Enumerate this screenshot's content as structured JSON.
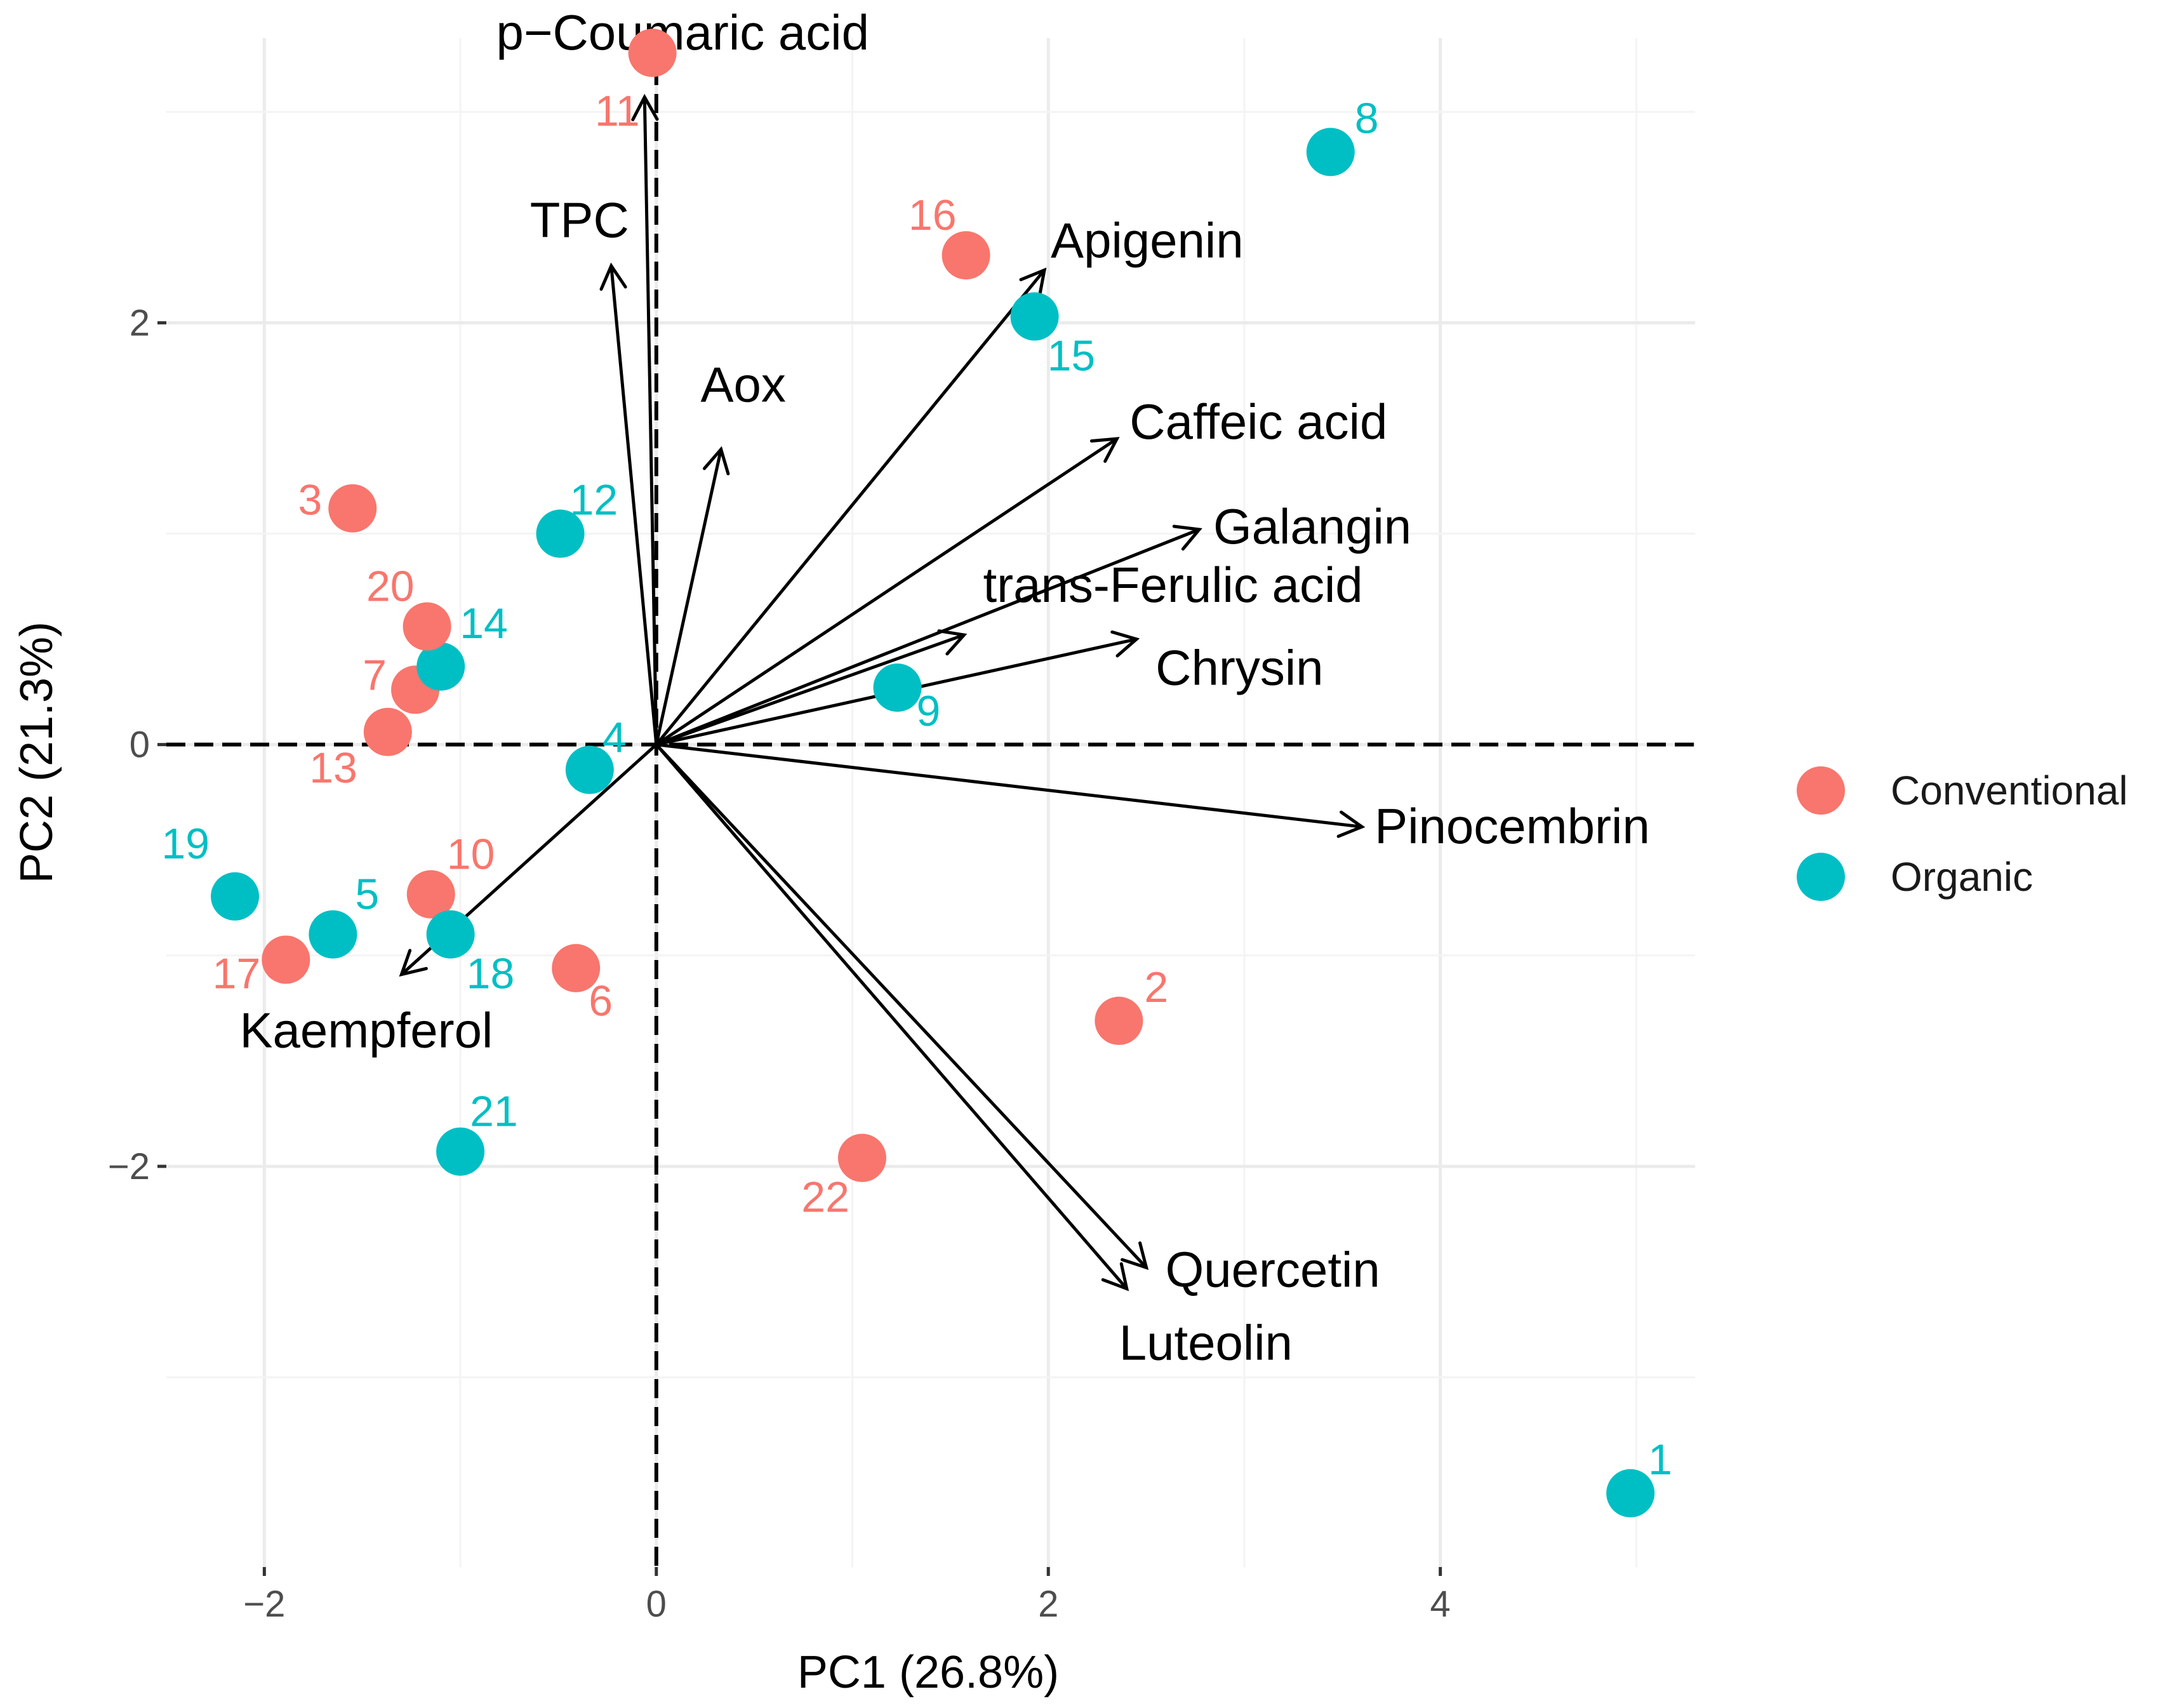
{
  "chart_data": {
    "type": "scatter",
    "title": "",
    "xlabel": "PC1 (26.8%)",
    "ylabel": "PC2 (21.3%)",
    "xlim": [
      -2.5,
      5.3
    ],
    "ylim": [
      -3.9,
      3.35
    ],
    "xticks": [
      -2,
      0,
      2,
      4
    ],
    "yticks": [
      -2,
      0,
      2
    ],
    "grid": true,
    "legend_position": "right",
    "groups": [
      {
        "name": "Conventional",
        "color": "#F8766D"
      },
      {
        "name": "Organic",
        "color": "#00BFC4"
      }
    ],
    "points": [
      {
        "label": "1",
        "group": "Organic",
        "x": 4.97,
        "y": -3.55
      },
      {
        "label": "2",
        "group": "Conventional",
        "x": 2.36,
        "y": -1.31
      },
      {
        "label": "3",
        "group": "Conventional",
        "x": -1.55,
        "y": 1.12
      },
      {
        "label": "4",
        "group": "Organic",
        "x": -0.34,
        "y": -0.12
      },
      {
        "label": "5",
        "group": "Organic",
        "x": -1.65,
        "y": -0.9
      },
      {
        "label": "6",
        "group": "Conventional",
        "x": -0.41,
        "y": -1.06
      },
      {
        "label": "7",
        "group": "Conventional",
        "x": -1.23,
        "y": 0.26
      },
      {
        "label": "8",
        "group": "Organic",
        "x": 3.44,
        "y": 2.81
      },
      {
        "label": "9",
        "group": "Organic",
        "x": 1.23,
        "y": 0.27
      },
      {
        "label": "10",
        "group": "Conventional",
        "x": -1.15,
        "y": -0.71
      },
      {
        "label": "11",
        "group": "Conventional",
        "x": -0.02,
        "y": 3.28
      },
      {
        "label": "12",
        "group": "Organic",
        "x": -0.49,
        "y": 1.0
      },
      {
        "label": "13",
        "group": "Conventional",
        "x": -1.37,
        "y": 0.06
      },
      {
        "label": "14",
        "group": "Organic",
        "x": -1.1,
        "y": 0.37
      },
      {
        "label": "15",
        "group": "Organic",
        "x": 1.93,
        "y": 2.03
      },
      {
        "label": "16",
        "group": "Conventional",
        "x": 1.58,
        "y": 2.32
      },
      {
        "label": "17",
        "group": "Conventional",
        "x": -1.89,
        "y": -1.02
      },
      {
        "label": "18",
        "group": "Organic",
        "x": -1.05,
        "y": -0.9
      },
      {
        "label": "19",
        "group": "Organic",
        "x": -2.15,
        "y": -0.72
      },
      {
        "label": "20",
        "group": "Conventional",
        "x": -1.17,
        "y": 0.56
      },
      {
        "label": "21",
        "group": "Organic",
        "x": -1.0,
        "y": -1.93
      },
      {
        "label": "22",
        "group": "Conventional",
        "x": 1.05,
        "y": -1.96
      }
    ],
    "loadings": [
      {
        "name": "p−Coumaric acid",
        "x": -0.06,
        "y": 3.07
      },
      {
        "name": "TPC",
        "x": -0.23,
        "y": 2.27
      },
      {
        "name": "Aox",
        "x": 0.33,
        "y": 1.4
      },
      {
        "name": "Apigenin",
        "x": 1.98,
        "y": 2.25
      },
      {
        "name": "Caffeic acid",
        "x": 2.35,
        "y": 1.45
      },
      {
        "name": "Galangin",
        "x": 2.77,
        "y": 1.02
      },
      {
        "name": "trans-Ferulic acid",
        "x": 1.57,
        "y": 0.52
      },
      {
        "name": "Chrysin",
        "x": 2.45,
        "y": 0.5
      },
      {
        "name": "Pinocembrin",
        "x": 3.6,
        "y": -0.39
      },
      {
        "name": "Quercetin",
        "x": 2.5,
        "y": -2.48
      },
      {
        "name": "Luteolin",
        "x": 2.4,
        "y": -2.58
      },
      {
        "name": "Kaempferol",
        "x": -1.3,
        "y": -1.09
      }
    ]
  }
}
